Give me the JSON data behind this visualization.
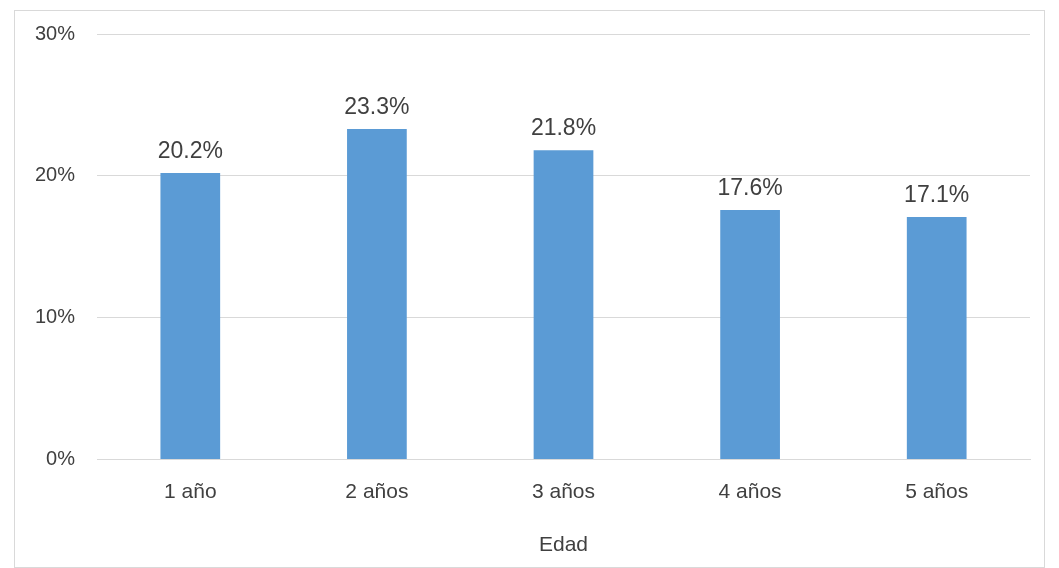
{
  "chart_data": {
    "type": "bar",
    "categories": [
      "1 año",
      "2 años",
      "3 años",
      "4 años",
      "5 años"
    ],
    "values": [
      20.2,
      23.3,
      21.8,
      17.6,
      17.1
    ],
    "value_labels": [
      "20.2%",
      "23.3%",
      "21.8%",
      "17.6%",
      "17.1%"
    ],
    "color": "#5b9bd5",
    "xlabel": "Edad",
    "ylim": [
      0,
      30
    ],
    "yticks": [
      {
        "value": 0,
        "label": "0%"
      },
      {
        "value": 10,
        "label": "10%"
      },
      {
        "value": 20,
        "label": "20%"
      },
      {
        "value": 30,
        "label": "30%"
      }
    ],
    "grid": "y"
  }
}
